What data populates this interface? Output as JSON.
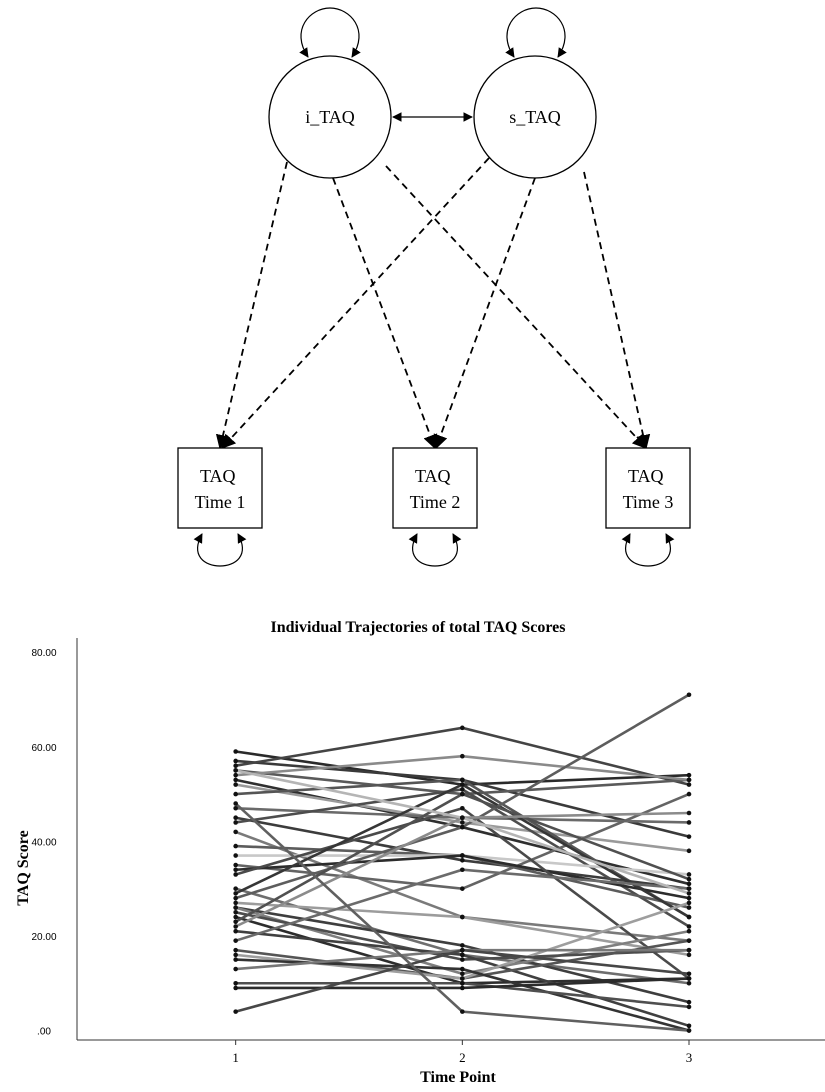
{
  "diagram": {
    "latents": [
      {
        "id": "i",
        "label": "i_TAQ"
      },
      {
        "id": "s",
        "label": "s_TAQ"
      }
    ],
    "observed": [
      {
        "id": "t1",
        "line1": "TAQ",
        "line2": "Time 1"
      },
      {
        "id": "t2",
        "line1": "TAQ",
        "line2": "Time 2"
      },
      {
        "id": "t3",
        "line1": "TAQ",
        "line2": "Time 3"
      }
    ]
  },
  "chart_data": {
    "type": "line",
    "title": "Individual Trajectories of total TAQ Scores",
    "xlabel": "Time Point",
    "ylabel": "TAQ Score",
    "x": [
      1,
      2,
      3
    ],
    "xlim": [
      0.3,
      3.6
    ],
    "ylim": [
      -2,
      83
    ],
    "yticks": [
      0,
      20,
      40,
      60,
      80
    ],
    "ytick_labels": [
      ".00",
      "20.00",
      "40.00",
      "60.00",
      "80.00"
    ],
    "xtick_labels": [
      "1",
      "2",
      "3"
    ],
    "grid": false,
    "series": [
      {
        "values": [
          59,
          52,
          54
        ],
        "color": "#2a2a2a"
      },
      {
        "values": [
          57,
          53,
          41
        ],
        "color": "#3a3a3a"
      },
      {
        "values": [
          56,
          64,
          52
        ],
        "color": "#444444"
      },
      {
        "values": [
          55,
          50,
          53
        ],
        "color": "#5a5a5a"
      },
      {
        "values": [
          54,
          58,
          53
        ],
        "color": "#8a8a8a"
      },
      {
        "values": [
          53,
          43,
          31
        ],
        "color": "#2f2f2f"
      },
      {
        "values": [
          52,
          44,
          38
        ],
        "color": "#9a9a9a"
      },
      {
        "values": [
          50,
          53,
          24
        ],
        "color": "#555555"
      },
      {
        "values": [
          47,
          45,
          44
        ],
        "color": "#6a6a6a"
      },
      {
        "values": [
          45,
          36,
          30
        ],
        "color": "#3c3c3c"
      },
      {
        "values": [
          44,
          51,
          22
        ],
        "color": "#4d4d4d"
      },
      {
        "values": [
          42,
          24,
          19
        ],
        "color": "#7a7a7a"
      },
      {
        "values": [
          39,
          37,
          26
        ],
        "color": "#5c5c5c"
      },
      {
        "values": [
          37,
          37,
          33
        ],
        "color": "#c8c8c8"
      },
      {
        "values": [
          35,
          30,
          50
        ],
        "color": "#646464"
      },
      {
        "values": [
          34,
          37,
          28
        ],
        "color": "#2c2c2c"
      },
      {
        "values": [
          33,
          47,
          11
        ],
        "color": "#4a4a4a"
      },
      {
        "values": [
          30,
          16,
          10
        ],
        "color": "#6e6e6e"
      },
      {
        "values": [
          29,
          52,
          24
        ],
        "color": "#363636"
      },
      {
        "values": [
          28,
          43,
          71
        ],
        "color": "#5d5d5d"
      },
      {
        "values": [
          27,
          24,
          16
        ],
        "color": "#9c9c9c"
      },
      {
        "values": [
          26,
          18,
          6
        ],
        "color": "#3e3e3e"
      },
      {
        "values": [
          26,
          12,
          21
        ],
        "color": "#7f7f7f"
      },
      {
        "values": [
          25,
          15,
          17
        ],
        "color": "#4c4c4c"
      },
      {
        "values": [
          24,
          10,
          11
        ],
        "color": "#2d2d2d"
      },
      {
        "values": [
          23,
          50,
          32
        ],
        "color": "#505050"
      },
      {
        "values": [
          22,
          45,
          46
        ],
        "color": "#8b8b8b"
      },
      {
        "values": [
          21,
          16,
          1
        ],
        "color": "#404040"
      },
      {
        "values": [
          19,
          34,
          30
        ],
        "color": "#6b6b6b"
      },
      {
        "values": [
          17,
          11,
          19
        ],
        "color": "#555555"
      },
      {
        "values": [
          16,
          11,
          27
        ],
        "color": "#9e9e9e"
      },
      {
        "values": [
          15,
          13,
          0
        ],
        "color": "#333333"
      },
      {
        "values": [
          13,
          17,
          17
        ],
        "color": "#777777"
      },
      {
        "values": [
          10,
          10,
          5
        ],
        "color": "#4f4f4f"
      },
      {
        "values": [
          9,
          9,
          11
        ],
        "color": "#2b2b2b"
      },
      {
        "values": [
          4,
          17,
          12
        ],
        "color": "#474747"
      },
      {
        "values": [
          48,
          4,
          0
        ],
        "color": "#606060"
      },
      {
        "values": [
          55,
          45,
          29
        ],
        "color": "#b5b5b5"
      }
    ]
  }
}
